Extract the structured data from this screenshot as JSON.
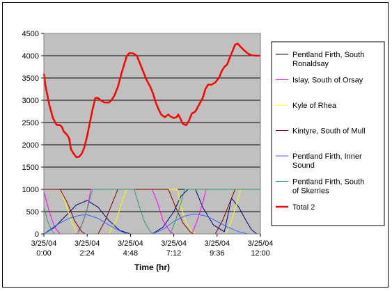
{
  "chart_data": {
    "type": "line",
    "title": "",
    "xlabel": "Time (hr)",
    "ylabel": "",
    "ylim": [
      0,
      4500
    ],
    "xlim": [
      0,
      12
    ],
    "y_ticks": [
      0,
      500,
      1000,
      1500,
      2000,
      2500,
      3000,
      3500,
      4000,
      4500
    ],
    "x_ticks": [
      {
        "x": 0,
        "date": "3/25/04",
        "time": "0:00"
      },
      {
        "x": 2.4,
        "date": "3/25/04",
        "time": "2:24"
      },
      {
        "x": 4.8,
        "date": "3/25/04",
        "time": "4:48"
      },
      {
        "x": 7.2,
        "date": "3/25/04",
        "time": "7:12"
      },
      {
        "x": 9.6,
        "date": "3/25/04",
        "time": "9:36"
      },
      {
        "x": 12,
        "date": "3/25/04",
        "time": "12:00"
      }
    ],
    "grid": true,
    "legend_position": "right",
    "plot_background": "#c0c0c0",
    "series": [
      {
        "name": "Pentland Firth, South Ronaldsay",
        "color": "#000080",
        "width": 1,
        "points": [
          [
            0,
            0
          ],
          [
            0.6,
            150
          ],
          [
            1.2,
            400
          ],
          [
            1.8,
            650
          ],
          [
            2.4,
            750
          ],
          [
            3.0,
            600
          ],
          [
            3.6,
            300
          ],
          [
            4.2,
            80
          ],
          [
            4.8,
            0
          ],
          [
            6.0,
            0
          ],
          [
            6.6,
            150
          ],
          [
            7.2,
            500
          ],
          [
            7.6,
            850
          ],
          [
            8.0,
            1000
          ],
          [
            8.4,
            1000
          ],
          [
            8.8,
            600
          ],
          [
            9.4,
            200
          ],
          [
            10.0,
            50
          ],
          [
            10.4,
            800
          ],
          [
            10.8,
            600
          ],
          [
            11.2,
            300
          ],
          [
            11.5,
            100
          ],
          [
            11.8,
            0
          ]
        ]
      },
      {
        "name": "Islay, South of Orsay",
        "color": "#ff00ff",
        "width": 1,
        "points": [
          [
            0,
            950
          ],
          [
            0.3,
            500
          ],
          [
            0.6,
            150
          ],
          [
            0.9,
            0
          ],
          [
            1.8,
            0
          ],
          [
            2.1,
            200
          ],
          [
            2.4,
            550
          ],
          [
            2.6,
            1000
          ],
          [
            6.0,
            1000
          ],
          [
            6.3,
            700
          ],
          [
            6.6,
            300
          ],
          [
            7.0,
            50
          ],
          [
            7.2,
            0
          ],
          [
            8.2,
            0
          ],
          [
            8.5,
            300
          ],
          [
            8.8,
            700
          ],
          [
            9.0,
            1000
          ],
          [
            12,
            1000
          ]
        ]
      },
      {
        "name": "Kyle of Rhea",
        "color": "#ffff00",
        "width": 1,
        "points": [
          [
            0,
            1000
          ],
          [
            0.9,
            1000
          ],
          [
            1.2,
            700
          ],
          [
            1.5,
            300
          ],
          [
            1.8,
            50
          ],
          [
            2.0,
            0
          ],
          [
            3.6,
            0
          ],
          [
            4.0,
            300
          ],
          [
            4.4,
            800
          ],
          [
            4.6,
            1000
          ],
          [
            7.4,
            1000
          ],
          [
            7.6,
            600
          ],
          [
            7.9,
            250
          ],
          [
            8.2,
            50
          ],
          [
            8.4,
            0
          ],
          [
            10.1,
            0
          ],
          [
            10.4,
            300
          ],
          [
            10.7,
            700
          ],
          [
            10.9,
            1000
          ],
          [
            12,
            1000
          ]
        ]
      },
      {
        "name": "Kintyre, South of Mull",
        "color": "#800000",
        "width": 1,
        "points": [
          [
            0,
            1000
          ],
          [
            0.9,
            1000
          ],
          [
            1.3,
            700
          ],
          [
            1.7,
            300
          ],
          [
            2.1,
            50
          ],
          [
            2.3,
            0
          ],
          [
            3.0,
            0
          ],
          [
            3.4,
            300
          ],
          [
            3.8,
            700
          ],
          [
            4.1,
            1000
          ],
          [
            6.9,
            1000
          ],
          [
            7.3,
            600
          ],
          [
            7.7,
            250
          ],
          [
            8.1,
            50
          ],
          [
            8.3,
            0
          ],
          [
            9.5,
            0
          ],
          [
            9.9,
            300
          ],
          [
            10.3,
            700
          ],
          [
            10.6,
            1000
          ],
          [
            12,
            1000
          ]
        ]
      },
      {
        "name": "Pentland Firth, Inner Sound",
        "color": "#3366ff",
        "width": 1,
        "points": [
          [
            0,
            0
          ],
          [
            0.7,
            200
          ],
          [
            1.4,
            350
          ],
          [
            2.0,
            420
          ],
          [
            2.4,
            430
          ],
          [
            3.0,
            350
          ],
          [
            3.6,
            200
          ],
          [
            4.2,
            70
          ],
          [
            4.6,
            0
          ],
          [
            6.0,
            0
          ],
          [
            6.6,
            100
          ],
          [
            7.2,
            280
          ],
          [
            7.8,
            400
          ],
          [
            8.4,
            450
          ],
          [
            9.0,
            400
          ],
          [
            9.6,
            280
          ],
          [
            10.2,
            150
          ],
          [
            10.8,
            50
          ],
          [
            11.3,
            0
          ],
          [
            12,
            0
          ]
        ]
      },
      {
        "name": "Pentland Firth, South of Skerries",
        "color": "#339966",
        "width": 1,
        "points": [
          [
            0,
            600
          ],
          [
            0.2,
            300
          ],
          [
            0.4,
            100
          ],
          [
            0.6,
            0
          ],
          [
            1.9,
            0
          ],
          [
            2.2,
            300
          ],
          [
            2.5,
            700
          ],
          [
            2.7,
            1000
          ],
          [
            5.0,
            1000
          ],
          [
            5.3,
            600
          ],
          [
            5.6,
            250
          ],
          [
            5.9,
            50
          ],
          [
            6.1,
            0
          ],
          [
            7.0,
            0
          ],
          [
            7.3,
            300
          ],
          [
            7.6,
            700
          ],
          [
            7.8,
            1000
          ],
          [
            12,
            1000
          ]
        ]
      },
      {
        "name": "Total 2",
        "color": "#ff0000",
        "width": 2.5,
        "points": [
          [
            0,
            3600
          ],
          [
            0.1,
            3300
          ],
          [
            0.3,
            2900
          ],
          [
            0.5,
            2600
          ],
          [
            0.7,
            2450
          ],
          [
            0.9,
            2440
          ],
          [
            1.0,
            2400
          ],
          [
            1.1,
            2300
          ],
          [
            1.25,
            2240
          ],
          [
            1.4,
            2150
          ],
          [
            1.5,
            1900
          ],
          [
            1.65,
            1800
          ],
          [
            1.8,
            1720
          ],
          [
            1.95,
            1730
          ],
          [
            2.1,
            1800
          ],
          [
            2.25,
            1950
          ],
          [
            2.4,
            2200
          ],
          [
            2.55,
            2500
          ],
          [
            2.7,
            2800
          ],
          [
            2.85,
            3050
          ],
          [
            3.0,
            3050
          ],
          [
            3.15,
            3000
          ],
          [
            3.35,
            2950
          ],
          [
            3.6,
            2950
          ],
          [
            3.75,
            3000
          ],
          [
            3.9,
            3100
          ],
          [
            4.1,
            3300
          ],
          [
            4.3,
            3600
          ],
          [
            4.45,
            3800
          ],
          [
            4.6,
            4000
          ],
          [
            4.75,
            4060
          ],
          [
            4.95,
            4050
          ],
          [
            5.15,
            4000
          ],
          [
            5.3,
            3850
          ],
          [
            5.5,
            3650
          ],
          [
            5.7,
            3450
          ],
          [
            5.9,
            3300
          ],
          [
            6.05,
            3150
          ],
          [
            6.2,
            2950
          ],
          [
            6.35,
            2800
          ],
          [
            6.5,
            2680
          ],
          [
            6.7,
            2620
          ],
          [
            6.9,
            2680
          ],
          [
            7.0,
            2640
          ],
          [
            7.2,
            2600
          ],
          [
            7.35,
            2620
          ],
          [
            7.45,
            2680
          ],
          [
            7.55,
            2600
          ],
          [
            7.7,
            2470
          ],
          [
            7.9,
            2440
          ],
          [
            8.05,
            2550
          ],
          [
            8.2,
            2700
          ],
          [
            8.4,
            2750
          ],
          [
            8.6,
            2900
          ],
          [
            8.8,
            3050
          ],
          [
            8.95,
            3250
          ],
          [
            9.1,
            3350
          ],
          [
            9.3,
            3350
          ],
          [
            9.5,
            3400
          ],
          [
            9.7,
            3500
          ],
          [
            9.85,
            3650
          ],
          [
            10.0,
            3750
          ],
          [
            10.15,
            3800
          ],
          [
            10.3,
            3950
          ],
          [
            10.45,
            4100
          ],
          [
            10.6,
            4250
          ],
          [
            10.75,
            4270
          ],
          [
            10.9,
            4200
          ],
          [
            11.1,
            4120
          ],
          [
            11.3,
            4050
          ],
          [
            11.5,
            4010
          ],
          [
            11.75,
            4000
          ],
          [
            12,
            4000
          ]
        ]
      }
    ]
  }
}
